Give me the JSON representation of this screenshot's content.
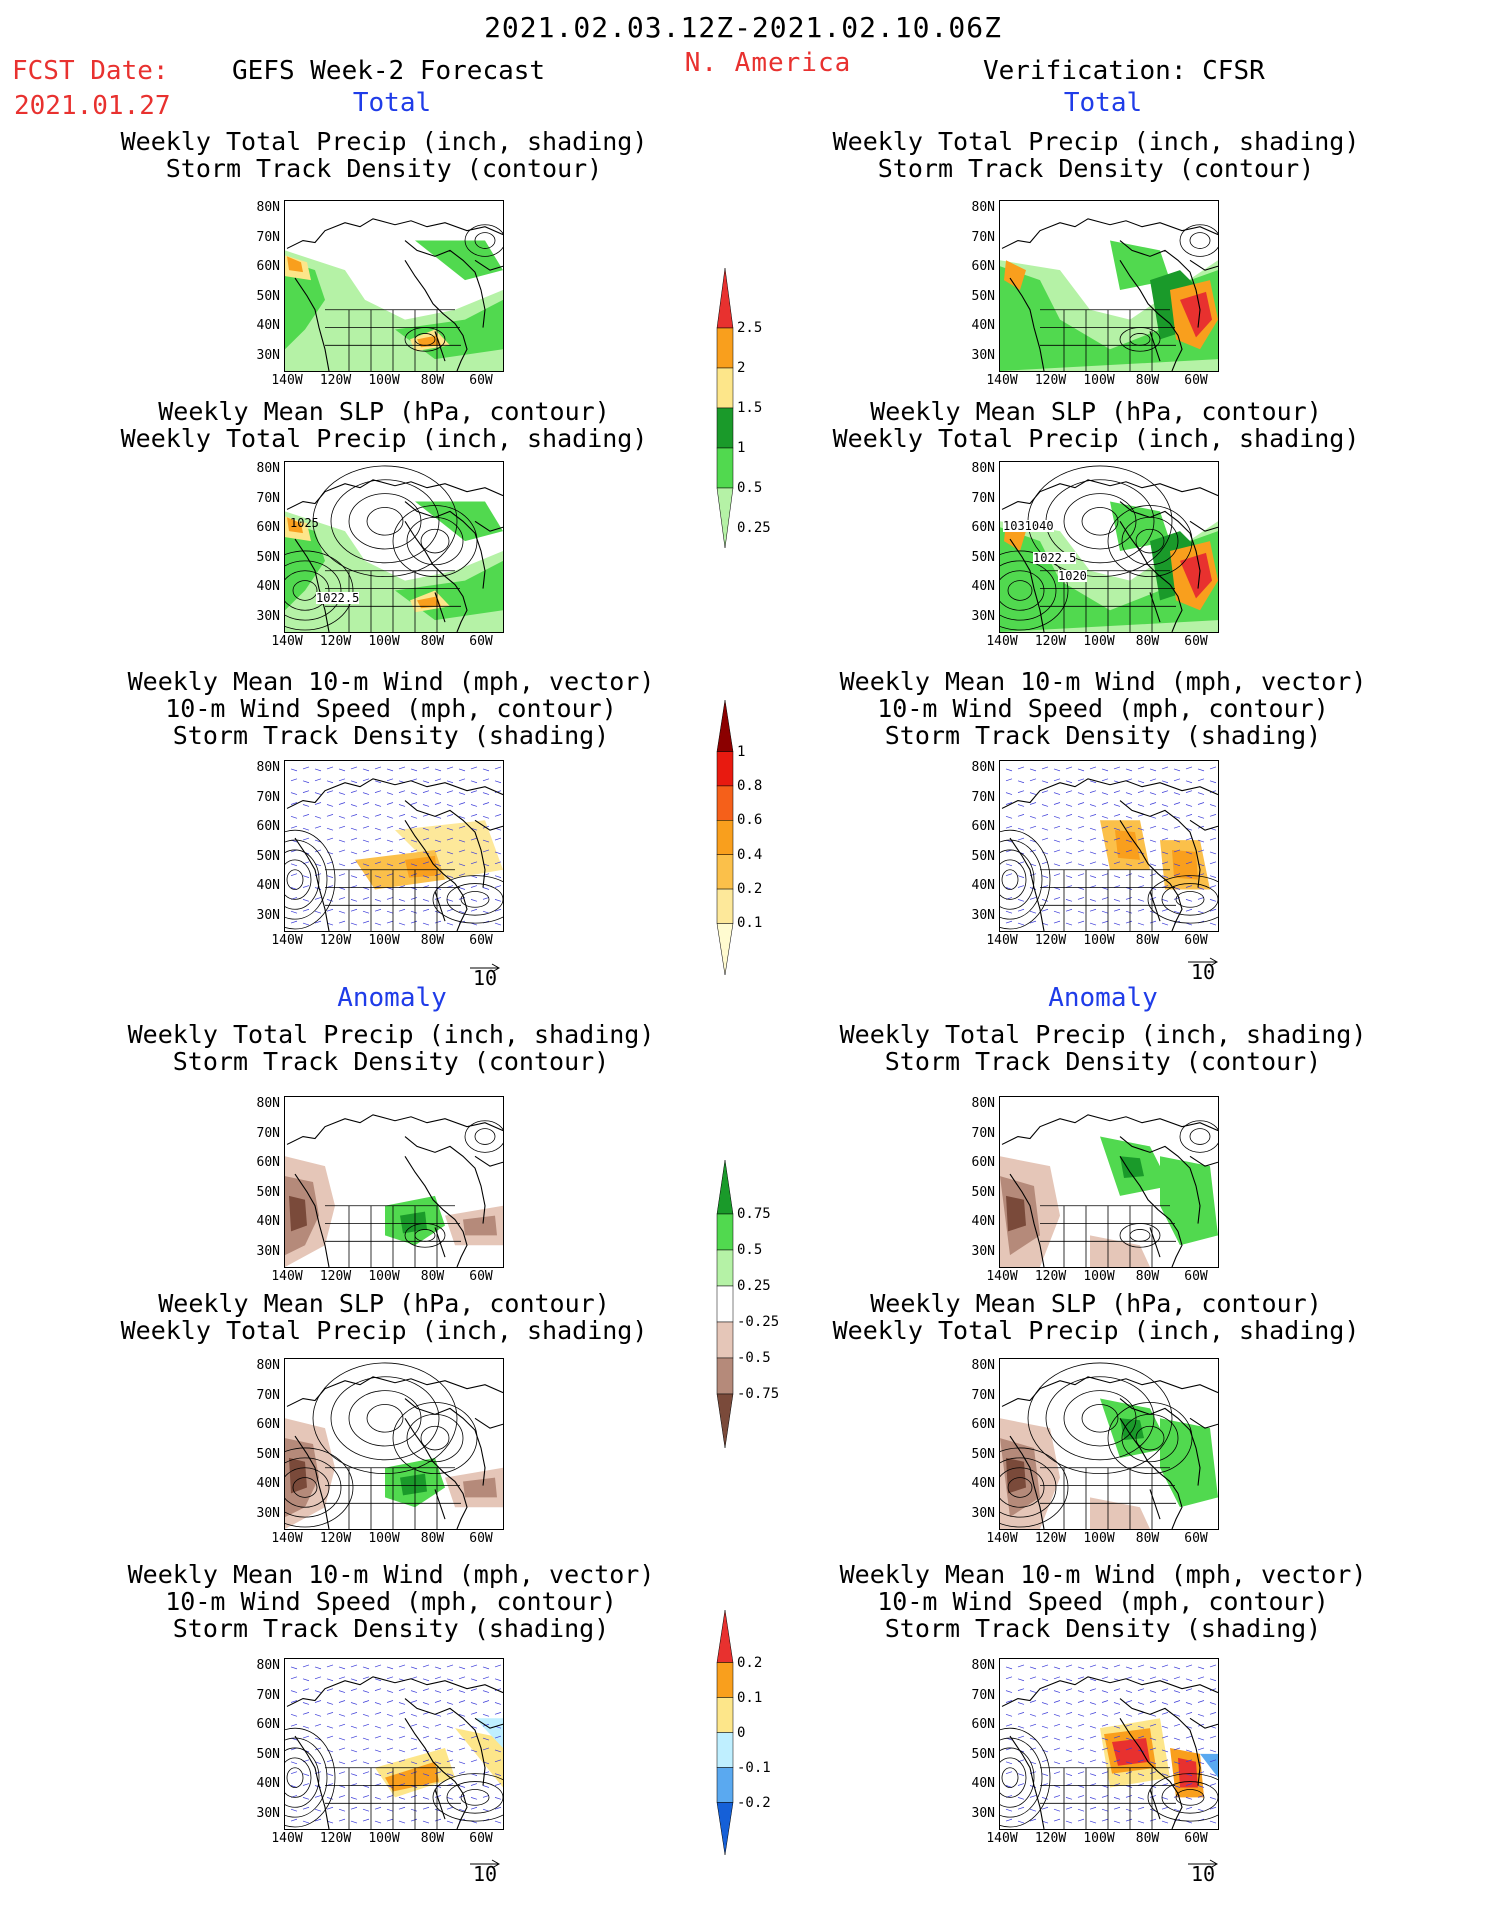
{
  "header": {
    "date_range": "2021.02.03.12Z-2021.02.10.06Z",
    "region": "N. America",
    "fcst_label": "FCST Date:",
    "fcst_date": "2021.01.27",
    "left_model": "GEFS Week-2 Forecast",
    "right_model": "Verification: CFSR"
  },
  "sections": {
    "total": "Total",
    "anomaly": "Anomaly"
  },
  "titles": {
    "precip_storm": [
      "Weekly Total Precip (inch, shading)",
      "Storm Track Density (contour)"
    ],
    "slp_precip": [
      "Weekly Mean SLP (hPa, contour)",
      "Weekly Total Precip (inch, shading)"
    ],
    "wind_storm": [
      "Weekly Mean 10-m Wind (mph, vector)",
      "10-m Wind Speed (mph, contour)",
      "Storm Track Density (shading)"
    ]
  },
  "axes": {
    "lat_labels": [
      "80N",
      "70N",
      "60N",
      "50N",
      "40N",
      "30N"
    ],
    "lon_labels": [
      "140W",
      "120W",
      "100W",
      "80W",
      "60W"
    ]
  },
  "vector_ref": "10",
  "contour_labels": {
    "gefs_slp": [
      "1025",
      "1022.5"
    ],
    "cfsr_slp": [
      "1031040",
      "1022.5",
      "1020"
    ]
  },
  "colorbars": {
    "precip_total": {
      "labels": [
        "2.5",
        "2",
        "1.5",
        "1",
        "0.5",
        "0.25"
      ],
      "colors": [
        "#e8312f",
        "#f99f1d",
        "#fde68a",
        "#1a9a2a",
        "#51d94f",
        "#b5f2a6"
      ]
    },
    "storm_total": {
      "labels": [
        "1",
        "0.8",
        "0.6",
        "0.4",
        "0.2",
        "0.1"
      ],
      "colors": [
        "#8b0000",
        "#e81a10",
        "#f5601a",
        "#f99f1d",
        "#fbc04a",
        "#fde89a",
        "#fffbd0"
      ]
    },
    "precip_anom": {
      "labels": [
        "0.75",
        "0.5",
        "0.25",
        "-0.25",
        "-0.5",
        "-0.75"
      ],
      "colors": [
        "#1a9a2a",
        "#51d94f",
        "#b5f2a6",
        "#ffffff",
        "#e5c6b8",
        "#b58a7a",
        "#7a4a3a"
      ]
    },
    "storm_anom": {
      "labels": [
        "0.2",
        "0.1",
        "0",
        "-0.1",
        "-0.2"
      ],
      "colors": [
        "#e8312f",
        "#f99f1d",
        "#fde68a",
        "#bfefff",
        "#5aa9f0",
        "#1560d8"
      ]
    }
  }
}
